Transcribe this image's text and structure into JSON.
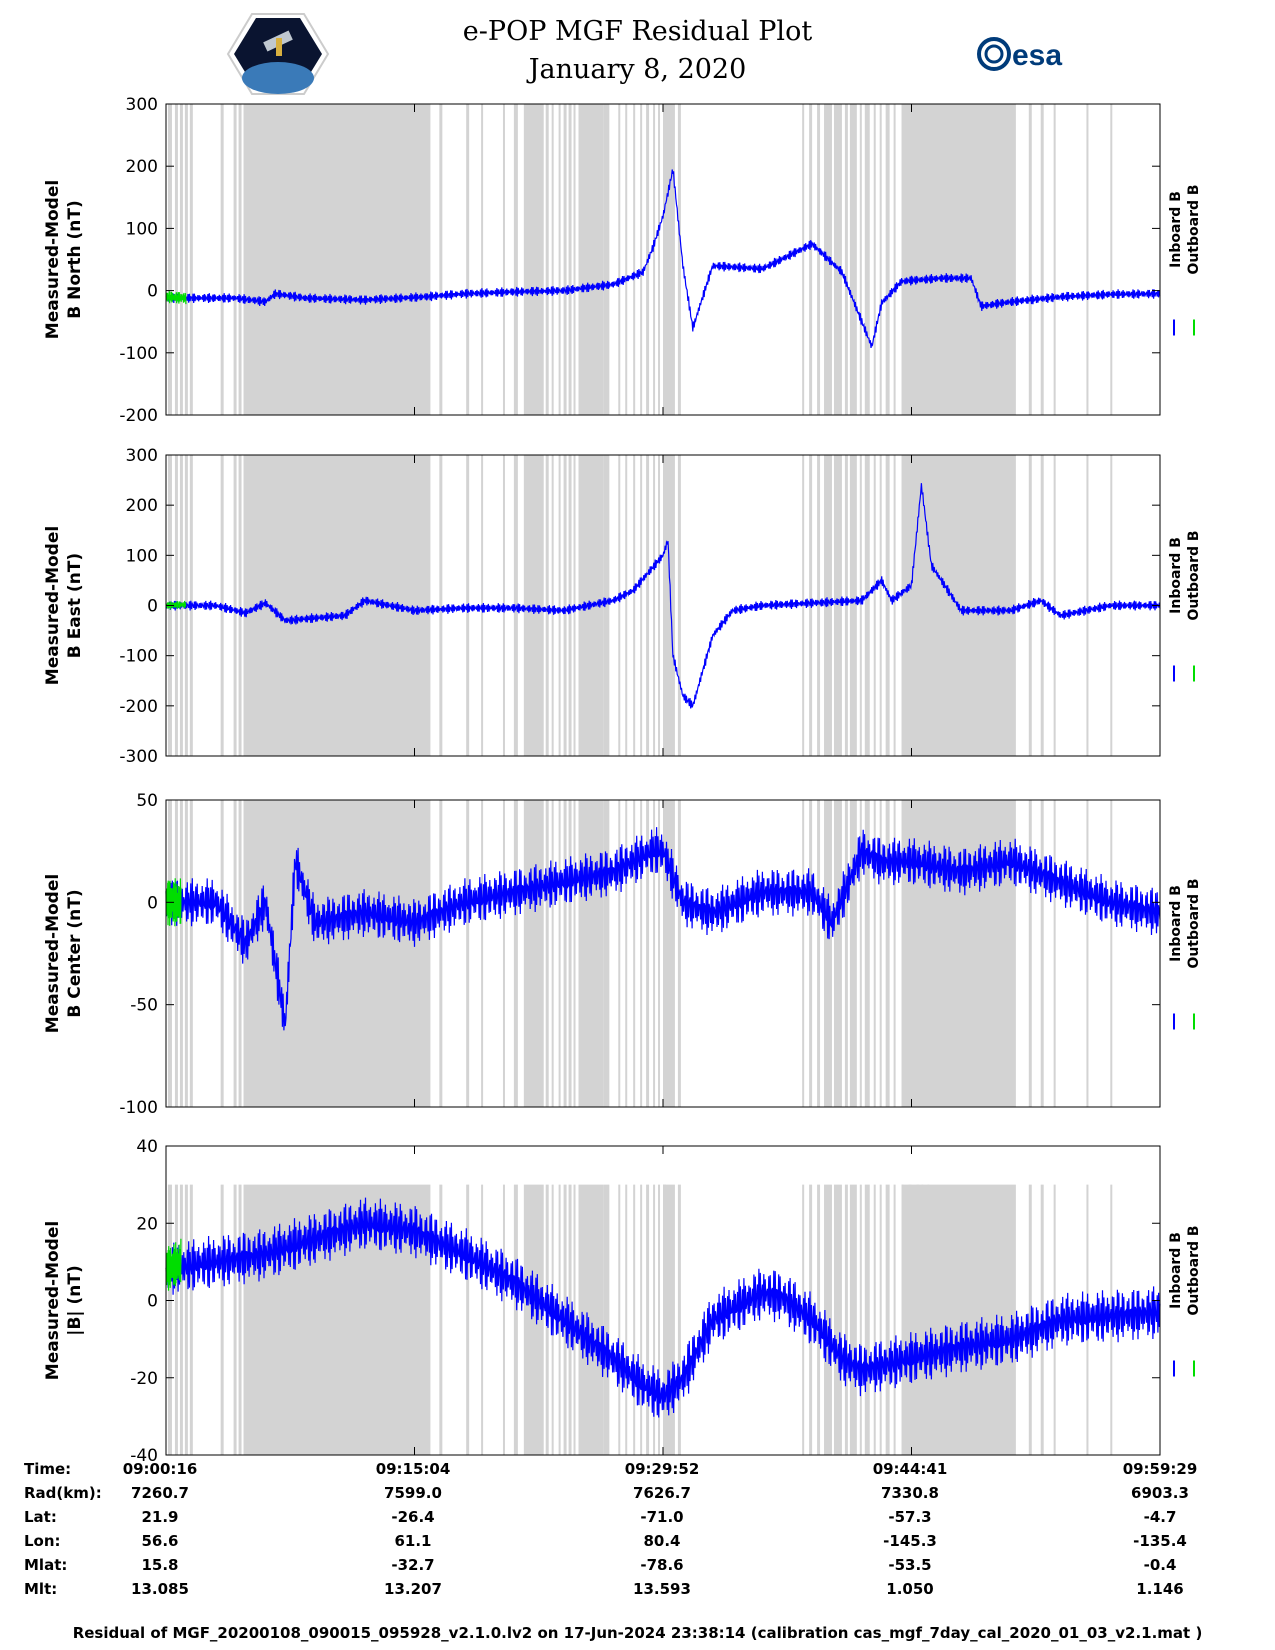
{
  "title": "e-POP MGF Residual Plot",
  "date": "January 8, 2020",
  "logos": {
    "left": "cassiope-mission-logo",
    "right": "esa",
    "right_text": "esa"
  },
  "colors": {
    "inboard": "#0000ff",
    "outboard": "#00dd00",
    "shade": "#d3d3d3",
    "axis": "#000000"
  },
  "chart_data": [
    {
      "type": "line",
      "ylabel": [
        "Measured-Model",
        "B North (nT)"
      ],
      "ylim": [
        -200,
        300
      ],
      "yticks": [
        -200,
        -100,
        0,
        100,
        200,
        300
      ],
      "legend": [
        "Inboard B",
        "Outboard B"
      ],
      "series": [
        {
          "name": "Inboard B",
          "x": [
            0,
            0.07,
            0.1,
            0.11,
            0.14,
            0.2,
            0.26,
            0.3,
            0.35,
            0.4,
            0.45,
            0.48,
            0.49,
            0.5,
            0.51,
            0.52,
            0.53,
            0.55,
            0.6,
            0.65,
            0.68,
            0.7,
            0.71,
            0.72,
            0.74,
            0.78,
            0.81,
            0.82,
            0.85,
            0.9,
            0.95,
            1.0
          ],
          "values": [
            -12,
            -12,
            -18,
            -5,
            -12,
            -15,
            -10,
            -5,
            -2,
            0,
            10,
            30,
            70,
            120,
            195,
            40,
            -60,
            40,
            35,
            75,
            30,
            -50,
            -90,
            -20,
            15,
            20,
            20,
            -25,
            -18,
            -10,
            -6,
            -5
          ],
          "amplitude": 8
        },
        {
          "name": "Outboard B",
          "x": [
            0,
            0.02
          ],
          "values": [
            -10,
            -12
          ],
          "amplitude": 10
        }
      ]
    },
    {
      "type": "line",
      "ylabel": [
        "Measured-Model",
        "B East (nT)"
      ],
      "ylim": [
        -300,
        300
      ],
      "yticks": [
        -300,
        -200,
        -100,
        0,
        100,
        200,
        300
      ],
      "legend": [
        "Inboard B",
        "Outboard B"
      ],
      "series": [
        {
          "name": "Inboard B",
          "x": [
            0,
            0.05,
            0.08,
            0.1,
            0.12,
            0.15,
            0.18,
            0.2,
            0.25,
            0.3,
            0.35,
            0.4,
            0.45,
            0.47,
            0.5,
            0.505,
            0.51,
            0.52,
            0.53,
            0.55,
            0.57,
            0.6,
            0.65,
            0.7,
            0.72,
            0.73,
            0.75,
            0.76,
            0.77,
            0.8,
            0.85,
            0.88,
            0.9,
            0.95,
            1.0
          ],
          "values": [
            0,
            0,
            -15,
            5,
            -30,
            -25,
            -20,
            10,
            -10,
            -5,
            -5,
            -10,
            10,
            30,
            100,
            130,
            -100,
            -180,
            -200,
            -60,
            -10,
            0,
            5,
            10,
            50,
            10,
            40,
            240,
            80,
            -10,
            -10,
            10,
            -20,
            0,
            0
          ],
          "amplitude": 10
        },
        {
          "name": "Outboard B",
          "x": [
            0,
            0.02
          ],
          "values": [
            0,
            2
          ],
          "amplitude": 8
        }
      ]
    },
    {
      "type": "line",
      "ylabel": [
        "Measured-Model",
        "B Center (nT)"
      ],
      "ylim": [
        -100,
        50
      ],
      "yticks": [
        -100,
        -50,
        0,
        50
      ],
      "legend": [
        "Inboard B",
        "Outboard B"
      ],
      "series": [
        {
          "name": "Inboard B",
          "x": [
            0,
            0.05,
            0.08,
            0.1,
            0.12,
            0.13,
            0.15,
            0.2,
            0.25,
            0.3,
            0.35,
            0.4,
            0.45,
            0.49,
            0.5,
            0.52,
            0.55,
            0.6,
            0.65,
            0.67,
            0.7,
            0.72,
            0.75,
            0.8,
            0.85,
            0.9,
            0.95,
            1.0
          ],
          "values": [
            0,
            0,
            -20,
            0,
            -60,
            20,
            -10,
            -5,
            -10,
            0,
            5,
            10,
            15,
            25,
            25,
            0,
            -5,
            5,
            5,
            -10,
            25,
            20,
            20,
            15,
            20,
            10,
            0,
            -5
          ],
          "amplitude": 12
        },
        {
          "name": "Outboard B",
          "x": [
            0,
            0.015
          ],
          "values": [
            0,
            0
          ],
          "amplitude": 12
        }
      ]
    },
    {
      "type": "line",
      "ylabel": [
        "Measured-Model",
        "|B| (nT)"
      ],
      "ylim": [
        -40,
        40
      ],
      "yticks": [
        -40,
        -20,
        0,
        20,
        40
      ],
      "legend": [
        "Inboard B",
        "Outboard B"
      ],
      "series": [
        {
          "name": "Inboard B",
          "x": [
            0,
            0.05,
            0.1,
            0.15,
            0.2,
            0.25,
            0.3,
            0.35,
            0.4,
            0.45,
            0.48,
            0.5,
            0.52,
            0.55,
            0.6,
            0.62,
            0.65,
            0.68,
            0.7,
            0.75,
            0.8,
            0.85,
            0.9,
            0.95,
            1.0
          ],
          "values": [
            8,
            10,
            12,
            16,
            20,
            18,
            12,
            5,
            -5,
            -15,
            -22,
            -25,
            -20,
            -5,
            2,
            1,
            -5,
            -15,
            -18,
            -15,
            -12,
            -10,
            -5,
            -4,
            -3
          ],
          "amplitude": 7
        },
        {
          "name": "Outboard B",
          "x": [
            0,
            0.015
          ],
          "values": [
            8,
            10
          ],
          "amplitude": 6
        }
      ]
    }
  ],
  "ephemeris": {
    "labels": [
      "Time:",
      "Rad(km):",
      "Lat:",
      "Lon:",
      "Mlat:",
      "Mlt:"
    ],
    "rows": [
      [
        "09:00:16",
        "09:15:04",
        "09:29:52",
        "09:44:41",
        "09:59:29"
      ],
      [
        "7260.7",
        "7599.0",
        "7626.7",
        "7330.8",
        "6903.3"
      ],
      [
        "21.9",
        "-26.4",
        "-71.0",
        "-57.3",
        "-4.7"
      ],
      [
        "56.6",
        "61.1",
        "80.4",
        "-145.3",
        "-135.4"
      ],
      [
        "15.8",
        "-32.7",
        "-78.6",
        "-53.5",
        "-0.4"
      ],
      [
        "13.085",
        "13.207",
        "13.593",
        "1.050",
        "1.146"
      ]
    ]
  },
  "footnote": "Residual of MGF_20200108_090015_095928_v2.1.0.lv2 on 17-Jun-2024 23:38:14 (calibration cas_mgf_7day_cal_2020_01_03_v2.1.mat )"
}
